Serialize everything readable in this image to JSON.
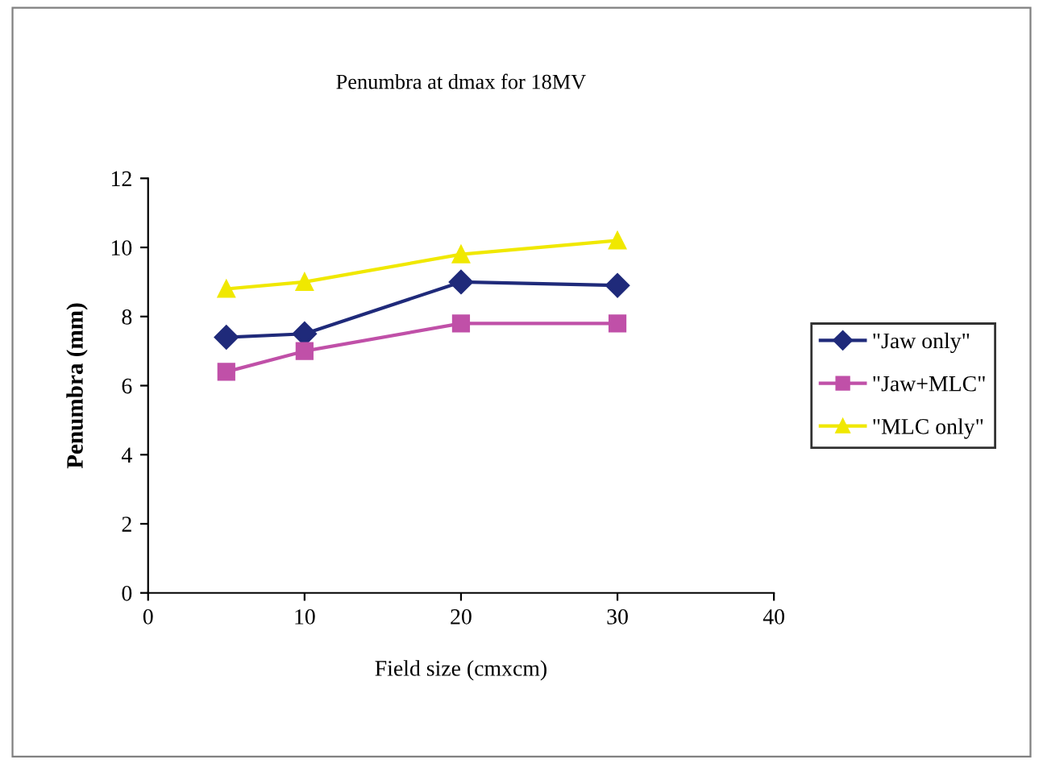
{
  "chart_data": {
    "type": "line",
    "title": "Penumbra at dmax for 18MV",
    "xlabel": "Field size (cmxcm)",
    "ylabel": "Penumbra (mm)",
    "x": [
      5,
      10,
      20,
      30
    ],
    "series": [
      {
        "name": "\"Jaw only\"",
        "color": "#1f2a7a",
        "marker": "diamond",
        "values": [
          7.4,
          7.5,
          9.0,
          8.9
        ]
      },
      {
        "name": "\"Jaw+MLC\"",
        "color": "#c050a8",
        "marker": "square",
        "values": [
          6.4,
          7.0,
          7.8,
          7.8
        ]
      },
      {
        "name": "\"MLC only\"",
        "color": "#f0e800",
        "marker": "triangle",
        "values": [
          8.8,
          9.0,
          9.8,
          10.2
        ]
      }
    ],
    "xlim": [
      0,
      40
    ],
    "xticks": [
      0,
      10,
      20,
      30,
      40
    ],
    "ylim": [
      0,
      12
    ],
    "yticks": [
      0,
      2,
      4,
      6,
      8,
      10,
      12
    ],
    "grid": false,
    "legend": "right",
    "line_style": "solid"
  }
}
